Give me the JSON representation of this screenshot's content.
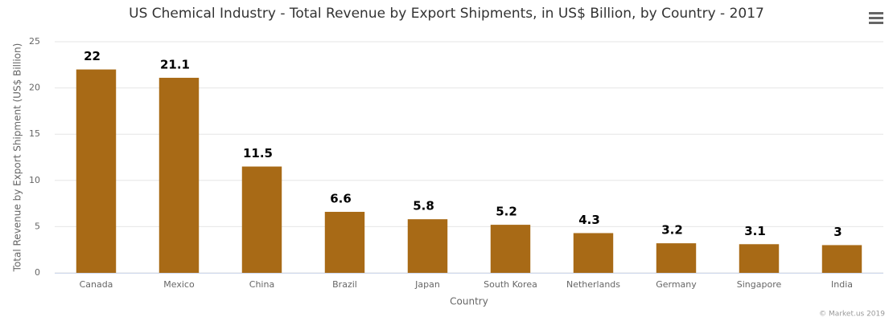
{
  "chart_data": {
    "type": "bar",
    "title": "US Chemical Industry - Total Revenue by Export Shipments, in US$ Billion, by Country - 2017",
    "x_label": "Country",
    "y_label": "Total Revenue by Export Shipment (US$ Billion)",
    "categories": [
      "Canada",
      "Mexico",
      "China",
      "Brazil",
      "Japan",
      "South Korea",
      "Netherlands",
      "Germany",
      "Singapore",
      "India"
    ],
    "values": [
      22,
      21.1,
      11.5,
      6.6,
      5.8,
      5.2,
      4.3,
      3.2,
      3.1,
      3
    ],
    "color": "#a86a16",
    "ylim": [
      0,
      25
    ],
    "yticks": [
      0,
      5,
      10,
      15,
      20,
      25
    ],
    "grid": true,
    "credits": "© Market.us 2019"
  }
}
